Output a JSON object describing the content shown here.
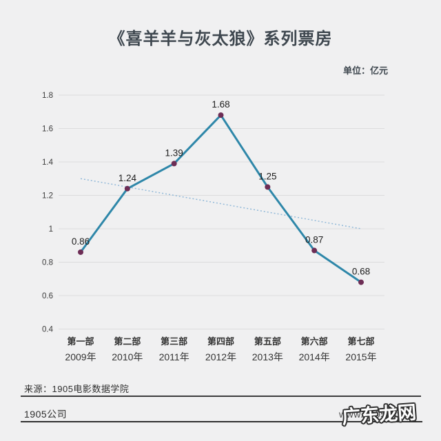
{
  "title": "《喜羊羊与灰太狼》系列票房",
  "unit_label": "单位：亿元",
  "chart_data": {
    "type": "line",
    "title": "《喜羊羊与灰太狼》系列票房",
    "unit": "亿元",
    "categories": [
      "第一部",
      "第二部",
      "第三部",
      "第四部",
      "第五部",
      "第六部",
      "第七部"
    ],
    "category_years": [
      "2009年",
      "2010年",
      "2011年",
      "2012年",
      "2013年",
      "2014年",
      "2015年"
    ],
    "values": [
      0.86,
      1.24,
      1.39,
      1.68,
      1.25,
      0.87,
      0.68
    ],
    "point_labels": [
      "0.86",
      "1.24",
      "1.39",
      "1.68",
      "1.25",
      "0.87",
      "0.68"
    ],
    "ylim": [
      0.4,
      1.8
    ],
    "yticks": [
      "0.4",
      "0.6",
      "0.8",
      "1",
      "1.2",
      "1.4",
      "1.6",
      "1.8"
    ],
    "grid": true,
    "legend": "none",
    "trendline": {
      "style": "dotted",
      "start_value": 1.3,
      "end_value": 1.0
    },
    "colors": {
      "line": "#2e87a9",
      "marker": "#6d2d55",
      "trend": "#90b8d8",
      "grid": "#dcdcdd",
      "tick_text": "#3a3a3a",
      "label_text": "#1c1c1c",
      "axis_text": "#333333"
    }
  },
  "footer": {
    "source": "来源：1905电影数据学院",
    "company": "1905公司",
    "url": "www.1905.com",
    "watermark": "广东龙网"
  }
}
